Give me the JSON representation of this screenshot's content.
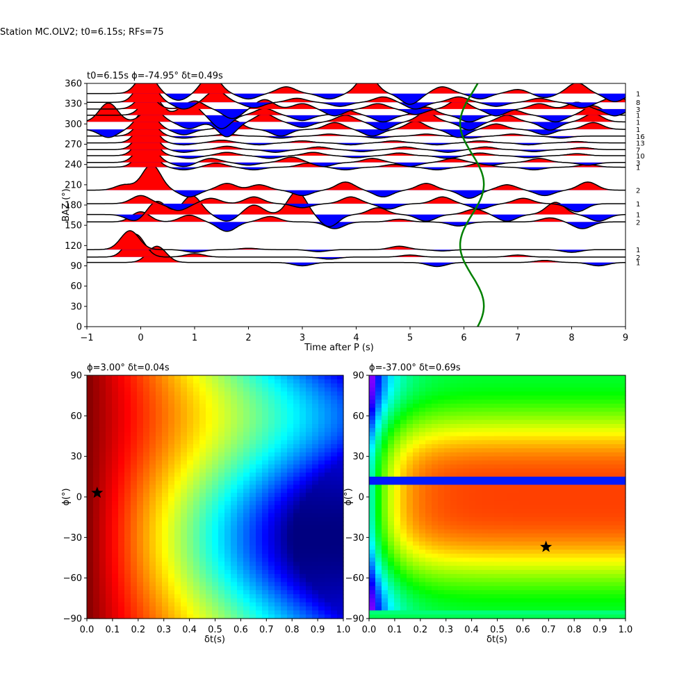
{
  "figure": {
    "suptitle": "Station MC.OLV2; t0=6.15s; RFs=75"
  },
  "chart_data": [
    {
      "type": "line",
      "panel": "receiver-functions-by-back-azimuth",
      "title": "t0=6.15s ϕ=-74.95° δt=0.49s",
      "xlabel": "Time after P (s)",
      "ylabel": "BAZ (°)",
      "xlim": [
        -1,
        9
      ],
      "ylim": [
        0,
        360
      ],
      "xticks": [
        "−1",
        "0",
        "1",
        "2",
        "3",
        "4",
        "5",
        "6",
        "7",
        "8",
        "9"
      ],
      "yticks": [
        "0",
        "30",
        "60",
        "90",
        "120",
        "150",
        "180",
        "210",
        "240",
        "270",
        "300",
        "330",
        "360"
      ],
      "fill_colors": {
        "positive": "#ff0000",
        "negative": "#0000ff"
      },
      "traces": [
        {
          "baz": 95,
          "count": "1",
          "peaks": [
            [
              0.3,
              24
            ],
            [
              3.0,
              -5
            ],
            [
              5.5,
              -6
            ],
            [
              7.5,
              3
            ],
            [
              8.5,
              -5
            ]
          ]
        },
        {
          "baz": 103,
          "count": "2",
          "peaks": [
            [
              -0.1,
              34
            ],
            [
              1.0,
              5
            ],
            [
              3.5,
              -3
            ],
            [
              5.0,
              3
            ],
            [
              7.0,
              3
            ]
          ]
        },
        {
          "baz": 114,
          "count": "1",
          "peaks": [
            [
              -0.2,
              28
            ],
            [
              1.0,
              -4
            ],
            [
              2.0,
              2
            ],
            [
              3.3,
              -3
            ],
            [
              4.8,
              5
            ],
            [
              5.6,
              -2
            ],
            [
              8.0,
              -4
            ]
          ]
        },
        {
          "baz": 155,
          "count": "2",
          "peaks": [
            [
              0.0,
              15
            ],
            [
              0.9,
              10
            ],
            [
              1.6,
              -14
            ],
            [
              2.4,
              8
            ],
            [
              3.6,
              -10
            ],
            [
              4.8,
              4
            ],
            [
              5.9,
              -6
            ],
            [
              7.6,
              6
            ],
            [
              8.2,
              -10
            ]
          ]
        },
        {
          "baz": 166,
          "count": "1",
          "peaks": [
            [
              -0.1,
              -10
            ],
            [
              0.3,
              20
            ],
            [
              0.95,
              28
            ],
            [
              1.6,
              -10
            ],
            [
              2.1,
              14
            ],
            [
              2.9,
              34
            ],
            [
              3.5,
              -18
            ],
            [
              4.4,
              10
            ],
            [
              5.3,
              -10
            ],
            [
              6.2,
              8
            ],
            [
              6.8,
              -10
            ],
            [
              7.7,
              18
            ],
            [
              8.5,
              -10
            ]
          ]
        },
        {
          "baz": 182,
          "count": "1",
          "peaks": [
            [
              0.0,
              12
            ],
            [
              0.7,
              -10
            ],
            [
              1.3,
              8
            ],
            [
              2.1,
              10
            ],
            [
              3.0,
              -6
            ],
            [
              3.9,
              10
            ],
            [
              4.6,
              -8
            ],
            [
              5.6,
              10
            ],
            [
              6.3,
              -8
            ],
            [
              7.1,
              8
            ],
            [
              8.1,
              -12
            ]
          ]
        },
        {
          "baz": 202,
          "count": "2",
          "peaks": [
            [
              -0.3,
              8
            ],
            [
              0.2,
              38
            ],
            [
              0.9,
              -10
            ],
            [
              1.6,
              10
            ],
            [
              2.2,
              8
            ],
            [
              3.0,
              -8
            ],
            [
              3.8,
              12
            ],
            [
              4.5,
              -10
            ],
            [
              5.3,
              10
            ],
            [
              6.1,
              -12
            ],
            [
              6.8,
              8
            ],
            [
              7.5,
              -8
            ],
            [
              8.3,
              12
            ]
          ]
        },
        {
          "baz": 236,
          "count": "1",
          "peaks": [
            [
              0.1,
              28
            ],
            [
              0.8,
              -4
            ],
            [
              1.4,
              6
            ],
            [
              2.1,
              -4
            ],
            [
              3.1,
              6
            ],
            [
              3.8,
              -4
            ],
            [
              4.7,
              4
            ],
            [
              5.5,
              -4
            ],
            [
              6.3,
              6
            ],
            [
              7.3,
              -4
            ],
            [
              8.3,
              4
            ]
          ]
        },
        {
          "baz": 243,
          "count": "3",
          "peaks": [
            [
              0.1,
              32
            ],
            [
              0.8,
              -6
            ],
            [
              1.3,
              6
            ],
            [
              2.0,
              -4
            ],
            [
              2.8,
              8
            ],
            [
              3.4,
              -6
            ],
            [
              4.3,
              6
            ],
            [
              5.0,
              -6
            ],
            [
              5.8,
              6
            ],
            [
              6.5,
              -4
            ],
            [
              7.4,
              6
            ],
            [
              8.3,
              -4
            ]
          ]
        },
        {
          "baz": 253,
          "count": "10",
          "peaks": [
            [
              0.1,
              35
            ],
            [
              0.9,
              -4
            ],
            [
              1.6,
              5
            ],
            [
              2.4,
              -4
            ],
            [
              3.2,
              5
            ],
            [
              4.0,
              -3
            ],
            [
              4.8,
              4
            ],
            [
              5.7,
              -4
            ],
            [
              6.3,
              4
            ],
            [
              7.2,
              -3
            ],
            [
              8.1,
              3
            ]
          ]
        },
        {
          "baz": 262,
          "count": "7",
          "peaks": [
            [
              0.1,
              34
            ],
            [
              0.8,
              -4
            ],
            [
              1.6,
              5
            ],
            [
              2.5,
              -4
            ],
            [
              3.3,
              4
            ],
            [
              4.1,
              -3
            ],
            [
              4.9,
              4
            ],
            [
              5.7,
              -4
            ],
            [
              6.4,
              4
            ],
            [
              7.3,
              -3
            ],
            [
              8.2,
              3
            ]
          ]
        },
        {
          "baz": 272,
          "count": "13",
          "peaks": [
            [
              0.1,
              33
            ],
            [
              0.8,
              -3
            ],
            [
              1.5,
              4
            ],
            [
              2.2,
              -3
            ],
            [
              3.0,
              3
            ],
            [
              3.9,
              -3
            ],
            [
              4.7,
              3
            ],
            [
              5.5,
              -3
            ],
            [
              6.3,
              3
            ],
            [
              7.2,
              -3
            ],
            [
              8.1,
              2
            ]
          ]
        },
        {
          "baz": 282,
          "count": "16",
          "peaks": [
            [
              0.1,
              28
            ],
            [
              0.8,
              -3
            ],
            [
              1.6,
              3
            ],
            [
              2.6,
              -3
            ],
            [
              3.5,
              3
            ],
            [
              4.4,
              -3
            ],
            [
              5.3,
              3
            ],
            [
              6.1,
              -3
            ],
            [
              6.9,
              3
            ],
            [
              7.8,
              -3
            ]
          ]
        },
        {
          "baz": 292,
          "count": "1",
          "peaks": [
            [
              -0.6,
              -12
            ],
            [
              0.1,
              30
            ],
            [
              0.8,
              -8
            ],
            [
              1.7,
              14
            ],
            [
              2.6,
              -10
            ],
            [
              3.6,
              10
            ],
            [
              4.3,
              -10
            ],
            [
              5.1,
              12
            ],
            [
              5.9,
              -12
            ],
            [
              6.6,
              8
            ],
            [
              7.5,
              -8
            ],
            [
              8.4,
              10
            ]
          ]
        },
        {
          "baz": 303,
          "count": "1",
          "peaks": [
            [
              -0.6,
              28
            ],
            [
              0.2,
              22
            ],
            [
              0.9,
              -10
            ],
            [
              1.6,
              -22
            ],
            [
              2.3,
              12
            ],
            [
              3.0,
              -8
            ],
            [
              3.8,
              10
            ],
            [
              4.5,
              -12
            ],
            [
              5.3,
              14
            ],
            [
              6.1,
              -12
            ],
            [
              6.8,
              10
            ],
            [
              7.6,
              -12
            ],
            [
              8.4,
              12
            ]
          ]
        },
        {
          "baz": 313,
          "count": "1",
          "peaks": [
            [
              0.2,
              30
            ],
            [
              0.9,
              18
            ],
            [
              1.5,
              -20
            ],
            [
              2.3,
              10
            ],
            [
              3.0,
              -8
            ],
            [
              3.8,
              8
            ],
            [
              4.5,
              -10
            ],
            [
              5.3,
              12
            ],
            [
              6.1,
              -10
            ],
            [
              6.9,
              8
            ],
            [
              7.7,
              -10
            ],
            [
              8.4,
              14
            ]
          ]
        },
        {
          "baz": 322,
          "count": "3",
          "peaks": [
            [
              0.1,
              22
            ],
            [
              1.0,
              12
            ],
            [
              1.7,
              -14
            ],
            [
              2.3,
              14
            ],
            [
              3.0,
              8
            ],
            [
              3.6,
              -10
            ],
            [
              4.4,
              8
            ],
            [
              5.1,
              -8
            ],
            [
              5.9,
              14
            ],
            [
              6.6,
              -10
            ],
            [
              7.4,
              8
            ],
            [
              8.1,
              10
            ],
            [
              8.8,
              -10
            ]
          ]
        },
        {
          "baz": 332,
          "count": "8",
          "peaks": [
            [
              0.1,
              38
            ],
            [
              0.8,
              -10
            ],
            [
              1.4,
              18
            ],
            [
              2.1,
              -8
            ],
            [
              2.9,
              6
            ],
            [
              3.7,
              -6
            ],
            [
              4.5,
              8
            ],
            [
              5.1,
              -10
            ],
            [
              5.9,
              8
            ],
            [
              6.6,
              -6
            ],
            [
              7.4,
              6
            ],
            [
              8.2,
              -8
            ],
            [
              8.8,
              8
            ]
          ]
        },
        {
          "baz": 345,
          "count": "1",
          "peaks": [
            [
              0.1,
              30
            ],
            [
              0.7,
              -10
            ],
            [
              1.3,
              28
            ],
            [
              2.0,
              -8
            ],
            [
              2.7,
              10
            ],
            [
              3.5,
              -8
            ],
            [
              4.2,
              28
            ],
            [
              5.0,
              -16
            ],
            [
              5.6,
              10
            ],
            [
              6.3,
              -8
            ],
            [
              7.0,
              6
            ],
            [
              7.5,
              -6
            ],
            [
              8.1,
              16
            ],
            [
              8.8,
              -12
            ]
          ]
        }
      ],
      "green_curve": {
        "color": "#008000",
        "center_time": 6.15,
        "amplitude": 0.22,
        "description_free": true
      }
    },
    {
      "type": "heatmap",
      "panel": "energy-grid-left",
      "title": "ϕ=3.00° δt=0.04s",
      "xlabel": "δt(s)",
      "ylabel": "ϕ(°)",
      "xlim": [
        0,
        1
      ],
      "ylim": [
        -90,
        90
      ],
      "xticks": [
        "0.0",
        "0.1",
        "0.2",
        "0.3",
        "0.4",
        "0.5",
        "0.6",
        "0.7",
        "0.8",
        "0.9",
        "1.0"
      ],
      "yticks": [
        "−90",
        "−60",
        "−30",
        "0",
        "30",
        "60",
        "90"
      ],
      "colormap": "jet",
      "best": {
        "dt": 0.04,
        "phi": 3.0
      }
    },
    {
      "type": "heatmap",
      "panel": "energy-grid-right",
      "title": "ϕ=-37.00° δt=0.69s",
      "xlabel": "δt(s)",
      "ylabel": "ϕ(°)",
      "xlim": [
        0,
        1
      ],
      "ylim": [
        -90,
        90
      ],
      "xticks": [
        "0.0",
        "0.1",
        "0.2",
        "0.3",
        "0.4",
        "0.5",
        "0.6",
        "0.7",
        "0.8",
        "0.9",
        "1.0"
      ],
      "yticks": [
        "−90",
        "−60",
        "−30",
        "0",
        "30",
        "60",
        "90"
      ],
      "colormap": "gist_rainbow",
      "best": {
        "dt": 0.69,
        "phi": -37.0
      }
    }
  ]
}
